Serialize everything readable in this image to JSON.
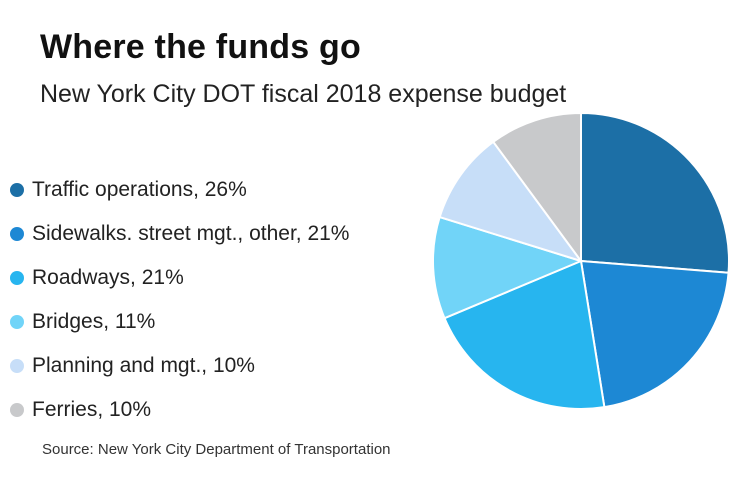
{
  "chart_data": {
    "type": "pie",
    "title": "Where the funds go",
    "subtitle": "New York City DOT fiscal 2018 expense budget",
    "source": "Source: New York City Department of Transportation",
    "legend_position": "left",
    "slices": [
      {
        "label": "Traffic operations",
        "value": 26,
        "legend_text": "Traffic operations, 26%",
        "color": "#1c6fa6"
      },
      {
        "label": "Sidewalks. street mgt., other",
        "value": 21,
        "legend_text": "Sidewalks. street mgt., other, 21%",
        "color": "#1d88d4"
      },
      {
        "label": "Roadways",
        "value": 21,
        "legend_text": "Roadways, 21%",
        "color": "#27b5ef"
      },
      {
        "label": "Bridges",
        "value": 11,
        "legend_text": "Bridges, 11%",
        "color": "#71d4f8"
      },
      {
        "label": "Planning and mgt.",
        "value": 10,
        "legend_text": "Planning and mgt., 10%",
        "color": "#c7def8"
      },
      {
        "label": "Ferries",
        "value": 10,
        "legend_text": "Ferries, 10%",
        "color": "#c8c9cb"
      }
    ]
  }
}
